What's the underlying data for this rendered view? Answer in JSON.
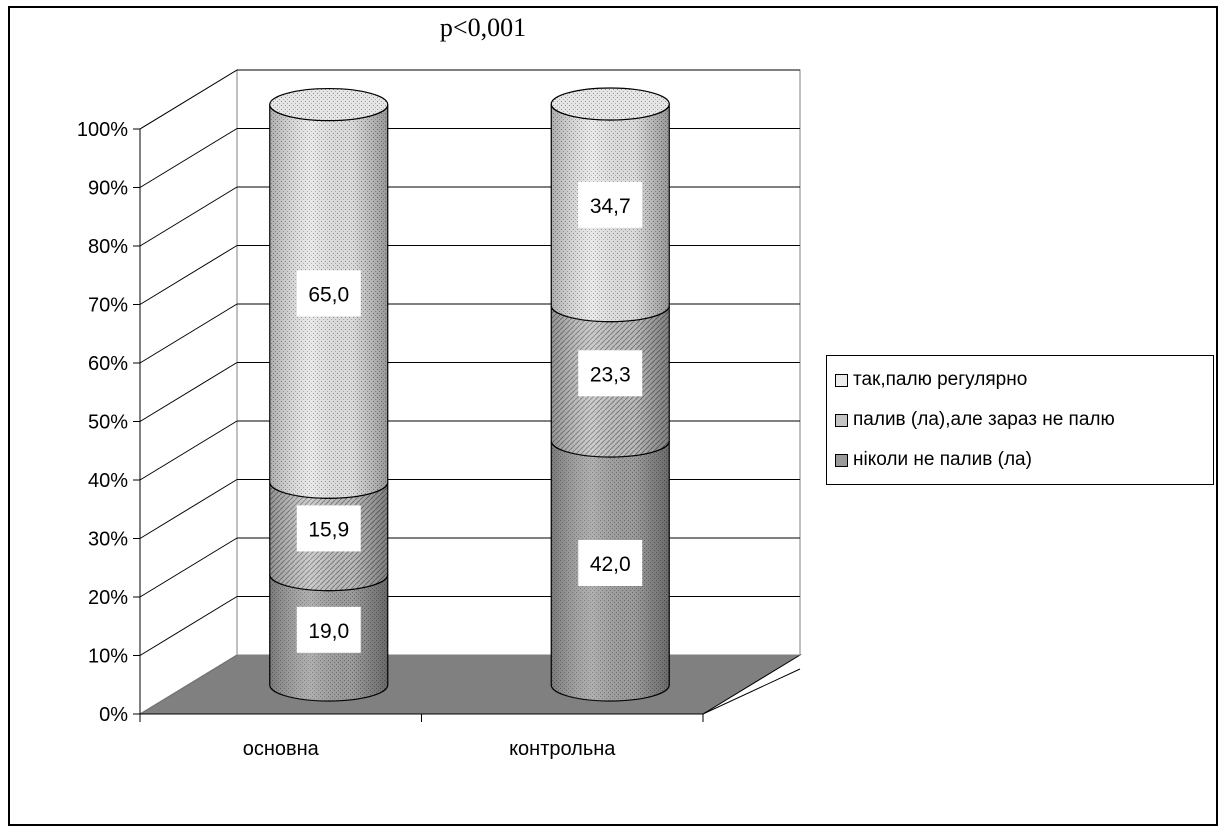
{
  "chart_data": {
    "type": "bar",
    "stacked": true,
    "percent_axis": true,
    "title": "p<0,001",
    "categories": [
      "основна",
      "контрольна"
    ],
    "y_tick_labels": [
      "0%",
      "10%",
      "20%",
      "30%",
      "40%",
      "50%",
      "60%",
      "70%",
      "80%",
      "90%",
      "100%"
    ],
    "ylim": [
      0,
      100
    ],
    "grid": true,
    "legend_position": "right",
    "series": [
      {
        "name": "ніколи не палив (ла)",
        "values": [
          19.0,
          42.0
        ],
        "labels": [
          "19,0",
          "42,0"
        ],
        "color": "#9a9a9a"
      },
      {
        "name": "палив (ла),але зараз не палю",
        "values": [
          15.9,
          23.3
        ],
        "labels": [
          "15,9",
          "23,3"
        ],
        "color": "#bcbcbc"
      },
      {
        "name": "так,палю регулярно",
        "values": [
          65.0,
          34.7
        ],
        "labels": [
          "65,0",
          "34,7"
        ],
        "color": "#dedede"
      }
    ]
  }
}
